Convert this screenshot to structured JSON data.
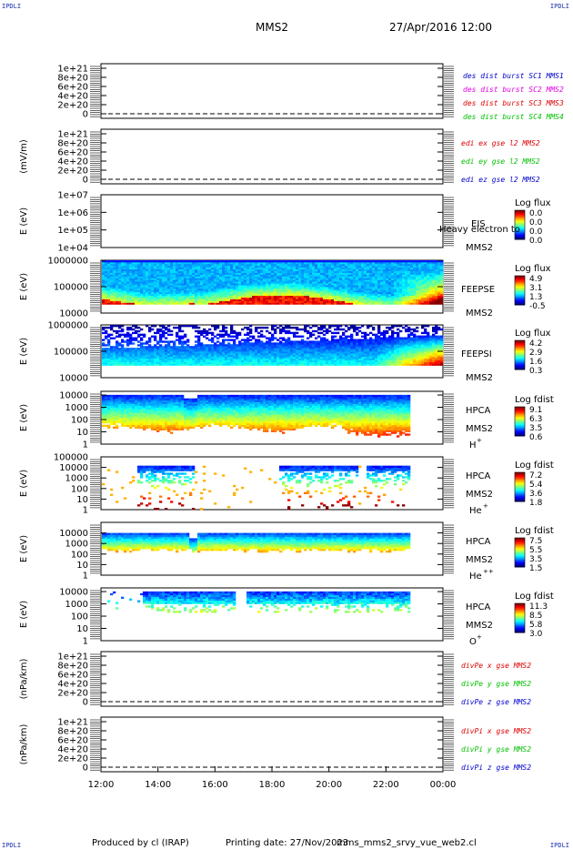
{
  "corner_label": "IPDLI",
  "header": {
    "spacecraft": "MMS2",
    "datetime": "27/Apr/2016 12:00"
  },
  "footer": {
    "producer": "Produced by cl (IRAP)",
    "printing_date": "Printing date: 27/Nov/2023",
    "filename": "mms_mms2_srvy_vue_web2.cl"
  },
  "colors": {
    "red": "#dd0000",
    "magenta": "#e000e0",
    "green": "#00c000",
    "blue": "#0000cc",
    "dashed": "#000000"
  },
  "chart_data": {
    "type": "heatmap",
    "time_axis": {
      "range": [
        "12:00",
        "00:00"
      ],
      "ticks": [
        "12:00",
        "14:00",
        "16:00",
        "18:00",
        "20:00",
        "22:00",
        "00:00"
      ],
      "data_end": "22:50"
    },
    "panels": [
      {
        "id": "des",
        "kind": "line",
        "ylabel": "",
        "ytick_labels": [
          "1e+21",
          "8e+20",
          "6e+20",
          "4e+20",
          "2e+20",
          "0"
        ],
        "ytick_values": [
          1e+21,
          8e+20,
          6e+20,
          4e+20,
          2e+20,
          0
        ],
        "ylim": [
          -1e+20,
          1.1e+21
        ],
        "legend": [
          {
            "text": "des dist burst SC1 MMS1",
            "color": "#0000cc"
          },
          {
            "text": "des dist burst SC2 MMS2",
            "color": "#e000e0"
          },
          {
            "text": "des dist burst SC3 MMS3",
            "color": "#dd0000"
          },
          {
            "text": "des dist burst SC4 MMS4",
            "color": "#00c000"
          }
        ]
      },
      {
        "id": "edi",
        "kind": "line",
        "ylabel": "(mV/m)",
        "ytick_labels": [
          "1e+21",
          "8e+20",
          "6e+20",
          "4e+20",
          "2e+20",
          "0"
        ],
        "ytick_values": [
          1e+21,
          8e+20,
          6e+20,
          4e+20,
          2e+20,
          0
        ],
        "ylim": [
          -1e+20,
          1.1e+21
        ],
        "legend": [
          {
            "text": "edi ex gse l2 MMS2",
            "color": "#dd0000"
          },
          {
            "text": "edi ey gse l2 MMS2",
            "color": "#00c000"
          },
          {
            "text": "edi ez gse l2 MMS2",
            "color": "#0000cc"
          }
        ]
      },
      {
        "id": "eis",
        "kind": "empty_spectrogram",
        "ylabel": "E (eV)",
        "log": true,
        "ylim": [
          10000.0,
          10000000.0
        ],
        "ytick_labels": [
          "1e+07",
          "1e+06",
          "1e+05",
          "1e+04"
        ],
        "ytick_values": [
          10000000.0,
          1000000.0,
          100000.0,
          10000.0
        ],
        "instrument": [
          "EIS",
          "MMS2"
        ],
        "overlay_text": "Heavy electron to",
        "colorbar_title": "Log flux",
        "colorbar_labels": [
          "0.0",
          "0.0",
          "0.0",
          "0.0"
        ]
      },
      {
        "id": "feepse",
        "kind": "spectrogram",
        "ylabel": "E (eV)",
        "log": true,
        "ylim": [
          10000.0,
          1000000.0
        ],
        "ytick_labels": [
          "1000000",
          "100000",
          "10000"
        ],
        "ytick_values": [
          1000000.0,
          100000.0,
          10000.0
        ],
        "instrument": [
          "FEEPSE",
          "MMS2"
        ],
        "colorbar_title": "Log flux",
        "colorbar_labels": [
          "4.9",
          "3.1",
          "1.3",
          "-0.5"
        ]
      },
      {
        "id": "feepsi",
        "kind": "spectrogram",
        "ylabel": "E (eV)",
        "log": true,
        "ylim": [
          10000.0,
          1000000.0
        ],
        "ytick_labels": [
          "1000000",
          "100000",
          "10000"
        ],
        "ytick_values": [
          1000000.0,
          100000.0,
          10000.0
        ],
        "instrument": [
          "FEEPSI",
          "MMS2"
        ],
        "colorbar_title": "Log flux",
        "colorbar_labels": [
          "4.2",
          "2.9",
          "1.6",
          "0.3"
        ]
      },
      {
        "id": "hpca_h",
        "kind": "spectrogram",
        "ylabel": "E (eV)",
        "log": true,
        "ylim": [
          1,
          20000.0
        ],
        "ytick_labels": [
          "10000",
          "1000",
          "100",
          "10",
          "1"
        ],
        "ytick_values": [
          10000.0,
          1000.0,
          100.0,
          10,
          1
        ],
        "instrument": [
          "HPCA",
          "MMS2"
        ],
        "species": "H",
        "charge": "+",
        "colorbar_title": "Log fdist",
        "colorbar_labels": [
          "9.1",
          "6.3",
          "3.5",
          "0.6"
        ]
      },
      {
        "id": "hpca_he",
        "kind": "spectrogram",
        "ylabel": "E (eV)",
        "log": true,
        "ylim": [
          1,
          100000.0
        ],
        "ytick_labels": [
          "100000",
          "10000",
          "1000",
          "100",
          "10",
          "1"
        ],
        "ytick_values": [
          100000.0,
          10000.0,
          1000.0,
          100.0,
          10,
          1
        ],
        "instrument": [
          "HPCA",
          "MMS2"
        ],
        "species": "He",
        "charge": "+",
        "colorbar_title": "Log fdist",
        "colorbar_labels": [
          "7.2",
          "5.4",
          "3.6",
          "1.8"
        ]
      },
      {
        "id": "hpca_hepp",
        "kind": "spectrogram",
        "ylabel": "E (eV)",
        "log": true,
        "ylim": [
          1,
          100000.0
        ],
        "ytick_labels": [
          "10000",
          "1000",
          "100",
          "10",
          "1"
        ],
        "ytick_values": [
          10000.0,
          1000.0,
          100.0,
          10,
          1
        ],
        "instrument": [
          "HPCA",
          "MMS2"
        ],
        "species": "He",
        "charge": "++",
        "colorbar_title": "Log fdist",
        "colorbar_labels": [
          "7.5",
          "5.5",
          "3.5",
          "1.5"
        ]
      },
      {
        "id": "hpca_o",
        "kind": "spectrogram",
        "ylabel": "E (eV)",
        "log": true,
        "ylim": [
          1,
          20000.0
        ],
        "ytick_labels": [
          "10000",
          "1000",
          "100",
          "10",
          "1"
        ],
        "ytick_values": [
          10000.0,
          1000.0,
          100.0,
          10,
          1
        ],
        "instrument": [
          "HPCA",
          "MMS2"
        ],
        "species": "O",
        "charge": "+",
        "colorbar_title": "Log fdist",
        "colorbar_labels": [
          "11.3",
          "8.5",
          "5.8",
          "3.0"
        ]
      },
      {
        "id": "divpe",
        "kind": "line",
        "ylabel": "(nPa/km)",
        "ytick_labels": [
          "1e+21",
          "8e+20",
          "6e+20",
          "4e+20",
          "2e+20",
          "0"
        ],
        "ytick_values": [
          1e+21,
          8e+20,
          6e+20,
          4e+20,
          2e+20,
          0
        ],
        "ylim": [
          -1e+20,
          1.1e+21
        ],
        "legend": [
          {
            "text": "divPe x gse MMS2",
            "color": "#dd0000"
          },
          {
            "text": "divPe y gse MMS2",
            "color": "#00c000"
          },
          {
            "text": "divPe z gse MMS2",
            "color": "#0000cc"
          }
        ]
      },
      {
        "id": "divpi",
        "kind": "line",
        "ylabel": "(nPa/km)",
        "ytick_labels": [
          "1e+21",
          "8e+20",
          "6e+20",
          "4e+20",
          "2e+20",
          "0"
        ],
        "ytick_values": [
          1e+21,
          8e+20,
          6e+20,
          4e+20,
          2e+20,
          0
        ],
        "ylim": [
          -1e+20,
          1.1e+21
        ],
        "legend": [
          {
            "text": "divPi x gse MMS2",
            "color": "#dd0000"
          },
          {
            "text": "divPi y gse MMS2",
            "color": "#00c000"
          },
          {
            "text": "divPi z gse MMS2",
            "color": "#0000cc"
          }
        ]
      }
    ]
  }
}
